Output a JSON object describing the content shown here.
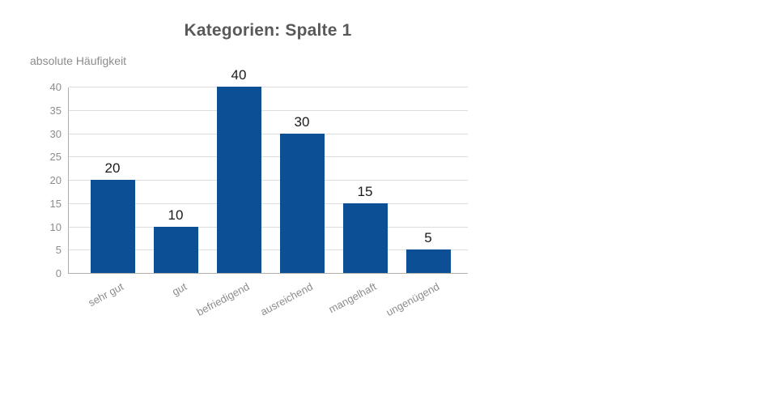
{
  "page": {
    "background": "#ffffff"
  },
  "chart_data": {
    "type": "bar",
    "title": "Kategorien: Spalte 1",
    "ylabel": "absolute Häufigkeit",
    "xlabel": "",
    "categories": [
      "sehr gut",
      "gut",
      "befriedigend",
      "ausreichend",
      "mangelhaft",
      "ungenügend"
    ],
    "values": [
      20,
      10,
      40,
      30,
      15,
      5
    ],
    "ylim": [
      0,
      40
    ],
    "ytick_step": 5,
    "yticks": [
      0,
      5,
      10,
      15,
      20,
      25,
      30,
      35,
      40
    ],
    "grid": true,
    "legend_position": "none",
    "colors": {
      "bar": "#0d4f94",
      "title": "#595959",
      "axis_text": "#8c8c8c",
      "value_label": "#1a1a1a",
      "gridline": "#dcdcdc",
      "axis_line": "#b2aeaa",
      "background": "#ffffff"
    }
  }
}
